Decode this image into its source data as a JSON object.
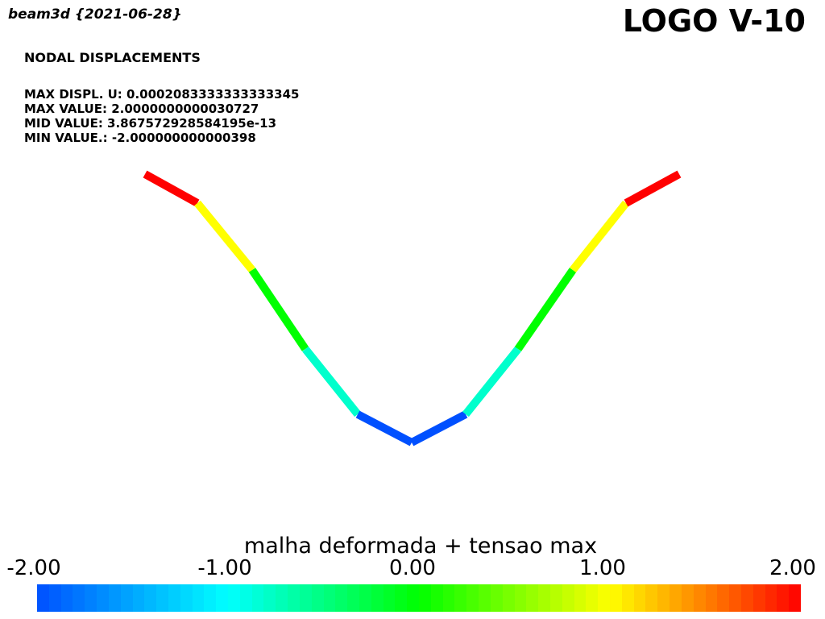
{
  "header": {
    "app_title": "beam3d {2021-06-28}",
    "logo_text": "LOGO V-10"
  },
  "info": {
    "heading": "NODAL DISPLACEMENTS",
    "max_displ": "MAX DISPL. U: 0.0002083333333333345",
    "max_value": "MAX VALUE: 2.0000000000030727",
    "mid_value": "MID VALUE: 3.867572928584195e-13",
    "min_value": "MIN VALUE.: -2.000000000000398"
  },
  "legend": {
    "title": "malha deformada + tensao max",
    "min": -2.0,
    "max": 2.0,
    "ticks": [
      "-2.00",
      "-1.00",
      "0.00",
      "1.00",
      "2.00"
    ],
    "steps": 64,
    "color_stops": [
      "#0050ff",
      "#00ffff",
      "#00ff00",
      "#ffff00",
      "#ff0000"
    ]
  },
  "mesh": {
    "elements": [
      {
        "value": 2.0
      },
      {
        "value": 1.0
      },
      {
        "value": 0.0
      },
      {
        "value": -0.8
      },
      {
        "value": -2.0
      },
      {
        "value": -2.0
      },
      {
        "value": -0.8
      },
      {
        "value": 0.0
      },
      {
        "value": 1.0
      },
      {
        "value": 2.0
      }
    ]
  }
}
